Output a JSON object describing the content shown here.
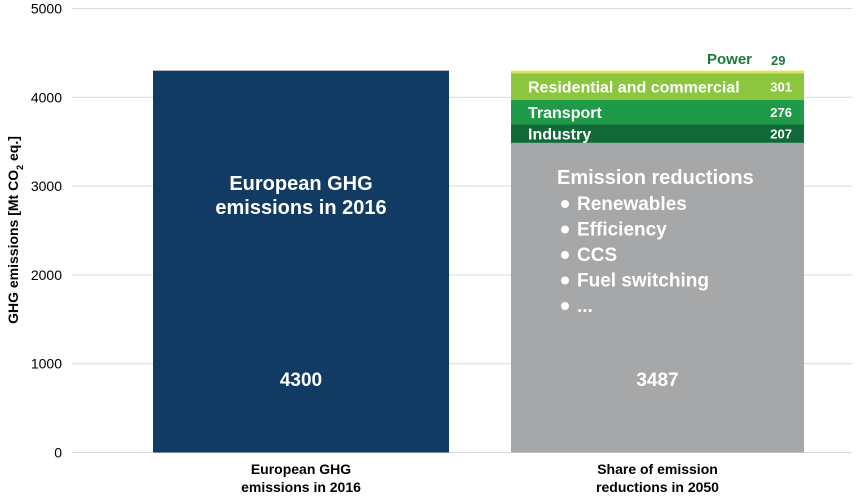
{
  "chart_data": {
    "type": "bar",
    "stacked": true,
    "ylabel": "GHG emissions [Mt CO2 eq.]",
    "ylabel_parts": {
      "before": "GHG emissions [Mt CO",
      "subscript": "2",
      "after": " eq.]"
    },
    "ylim": [
      0,
      5000
    ],
    "yticks": [
      "0",
      "1000",
      "2000",
      "3000",
      "4000",
      "5000"
    ],
    "grid": true,
    "categories": [
      "European GHG emissions in 2016",
      "Share of emission reductions in 2050"
    ],
    "category_label_lines": [
      [
        "European GHG",
        "emissions in 2016"
      ],
      [
        "Share of emission",
        "reductions in 2050"
      ]
    ],
    "bars": [
      {
        "segments": [
          {
            "name": "European GHG emissions in 2016",
            "value": 4300,
            "color": "#123b63"
          }
        ],
        "inner_title_lines": [
          "European GHG",
          "emissions in 2016"
        ],
        "value_label": "4300"
      },
      {
        "segments": [
          {
            "name": "Emission reductions",
            "value": 3487,
            "color": "#a6a7a9"
          },
          {
            "name": "Industry",
            "value": 207,
            "color": "#0f6a38"
          },
          {
            "name": "Transport",
            "value": 276,
            "color": "#1e9a48"
          },
          {
            "name": "Residential and commercial",
            "value": 301,
            "color": "#8cc63e"
          },
          {
            "name": "Power",
            "value": 29,
            "color": "#dfe35a"
          }
        ],
        "inner_title_lines": [
          "Emission reductions"
        ],
        "bullets": [
          "Renewables",
          "Efficiency",
          "CCS",
          "Fuel switching",
          "..."
        ],
        "value_label": "3487",
        "segment_labels": [
          {
            "name": "Industry",
            "value": "207"
          },
          {
            "name": "Transport",
            "value": "276"
          },
          {
            "name": "Residential and commercial",
            "value": "301"
          },
          {
            "name": "Power",
            "value": "29"
          }
        ]
      }
    ]
  },
  "colors": {
    "grid": "#d9d9d9",
    "axis_text": "#000000",
    "inside_text": "#ffffff",
    "power_label": "#1e7a3c"
  }
}
